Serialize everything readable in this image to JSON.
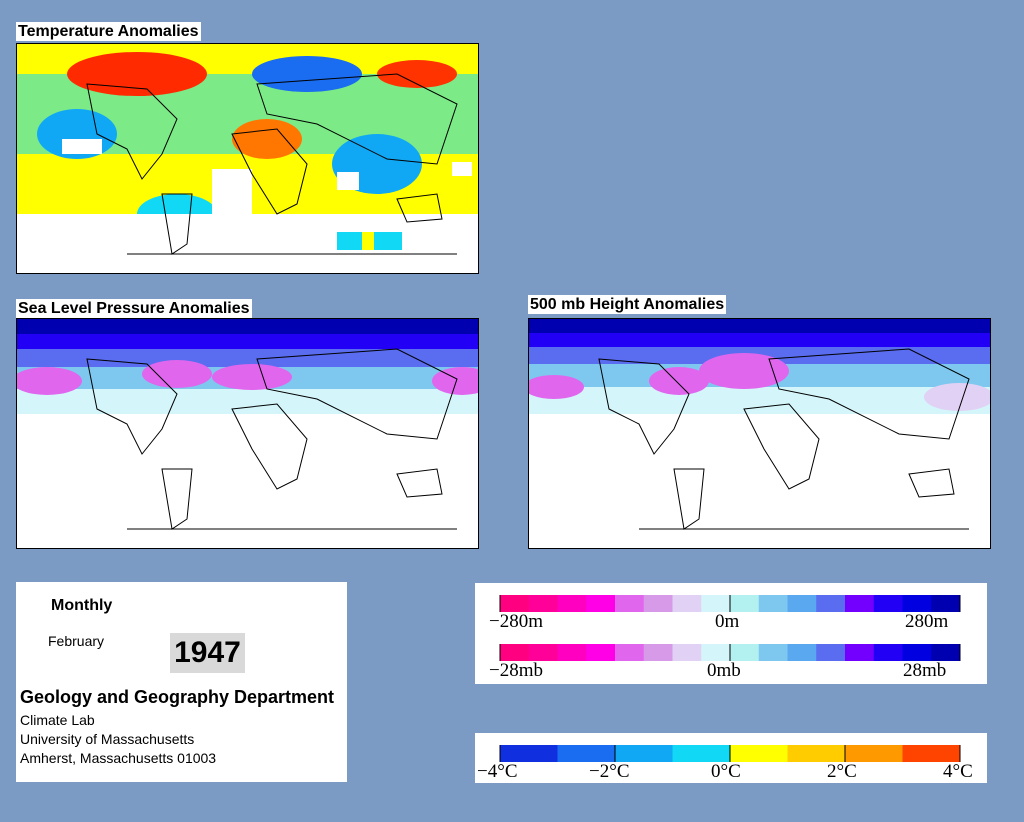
{
  "titles": {
    "temperature": "Temperature Anomalies",
    "pressure": "Sea Level Pressure Anomalies",
    "height": "500 mb Height Anomalies"
  },
  "info": {
    "period": "Monthly",
    "month": "February",
    "year": "1947",
    "department": "Geology and Geography Department",
    "lab": "Climate Lab",
    "university": "University of Massachusetts",
    "address": "Amherst, Massachusetts 01003"
  },
  "height_scale": {
    "labels": [
      "−280m",
      "0m",
      "280m"
    ],
    "colors": [
      "#ff0080",
      "#ff0099",
      "#ff00c0",
      "#ff00e6",
      "#e066ee",
      "#d79ae8",
      "#e1d1f5",
      "#d4f5fa",
      "#b3f0f0",
      "#7ec8ef",
      "#5aa8f0",
      "#5a6cef",
      "#7300ff",
      "#2200f5",
      "#0000e0",
      "#0000b0"
    ]
  },
  "pressure_scale": {
    "labels": [
      "−28mb",
      "0mb",
      "28mb"
    ],
    "colors": [
      "#ff0080",
      "#ff0099",
      "#ff00c0",
      "#ff00e6",
      "#e066ee",
      "#d79ae8",
      "#e1d1f5",
      "#d4f5fa",
      "#b3f0f0",
      "#7ec8ef",
      "#5aa8f0",
      "#5a6cef",
      "#7300ff",
      "#2200f5",
      "#0000e0",
      "#0000b0"
    ]
  },
  "temperature_scale": {
    "labels": [
      "−4°C",
      "−2°C",
      "0°C",
      "2°C",
      "4°C"
    ],
    "colors": [
      "#1030e0",
      "#1a6cf0",
      "#10a8f5",
      "#10d8f5",
      "#ffff00",
      "#ffcc00",
      "#ff9900",
      "#ff4400"
    ]
  }
}
